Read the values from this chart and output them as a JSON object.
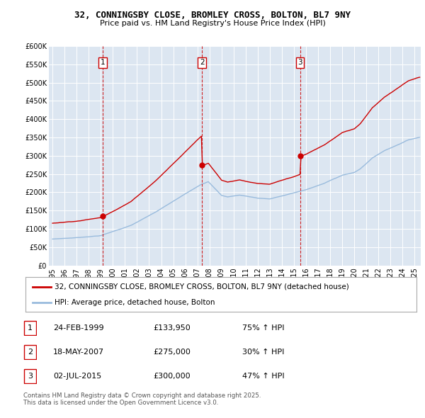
{
  "title1": "32, CONNINGSBY CLOSE, BROMLEY CROSS, BOLTON, BL7 9NY",
  "title2": "Price paid vs. HM Land Registry's House Price Index (HPI)",
  "bg_color": "#dce6f1",
  "red_color": "#cc0000",
  "blue_color": "#99bbdd",
  "grid_color": "#ffffff",
  "transaction_dates": [
    1999.14,
    2007.38,
    2015.5
  ],
  "transaction_prices": [
    133950,
    275000,
    300000
  ],
  "transaction_labels": [
    "1",
    "2",
    "3"
  ],
  "legend_red": "32, CONNINGSBY CLOSE, BROMLEY CROSS, BOLTON, BL7 9NY (detached house)",
  "legend_blue": "HPI: Average price, detached house, Bolton",
  "table_data": [
    [
      "1",
      "24-FEB-1999",
      "£133,950",
      "75% ↑ HPI"
    ],
    [
      "2",
      "18-MAY-2007",
      "£275,000",
      "30% ↑ HPI"
    ],
    [
      "3",
      "02-JUL-2015",
      "£300,000",
      "47% ↑ HPI"
    ]
  ],
  "footnote": "Contains HM Land Registry data © Crown copyright and database right 2025.\nThis data is licensed under the Open Government Licence v3.0.",
  "ylim": [
    0,
    600000
  ],
  "xlim_start": 1994.7,
  "xlim_end": 2025.5,
  "yticks": [
    0,
    50000,
    100000,
    150000,
    200000,
    250000,
    300000,
    350000,
    400000,
    450000,
    500000,
    550000,
    600000
  ],
  "ytick_labels": [
    "£0",
    "£50K",
    "£100K",
    "£150K",
    "£200K",
    "£250K",
    "£300K",
    "£350K",
    "£400K",
    "£450K",
    "£500K",
    "£550K",
    "£600K"
  ],
  "xticks": [
    1995,
    1996,
    1997,
    1998,
    1999,
    2000,
    2001,
    2002,
    2003,
    2004,
    2005,
    2006,
    2007,
    2008,
    2009,
    2010,
    2011,
    2012,
    2013,
    2014,
    2015,
    2016,
    2017,
    2018,
    2019,
    2020,
    2021,
    2022,
    2023,
    2024,
    2025
  ]
}
